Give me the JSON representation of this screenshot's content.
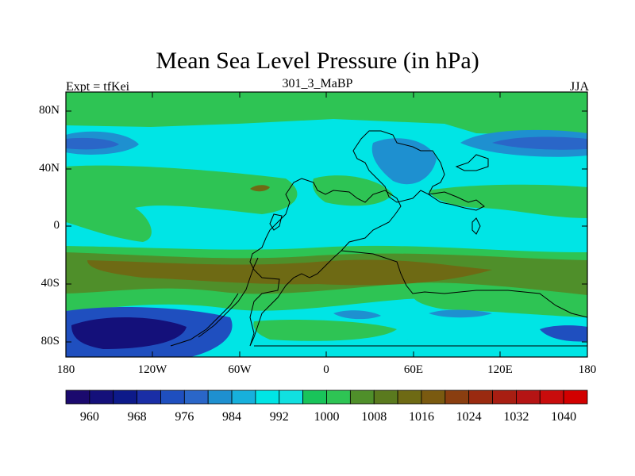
{
  "title": "Mean Sea Level Pressure (in hPa)",
  "left_label": "Expt = tfKei",
  "center_label": "301_3_MaBP",
  "right_label": "JJA",
  "y_ticks": [
    "80N",
    "40N",
    "0",
    "40S",
    "80S"
  ],
  "x_ticks": [
    "180",
    "120W",
    "60W",
    "0",
    "60E",
    "120E",
    "180"
  ],
  "colorbar": {
    "labels": [
      "960",
      "968",
      "976",
      "984",
      "992",
      "1000",
      "1008",
      "1016",
      "1024",
      "1032",
      "1040"
    ],
    "colors": [
      "#1b0a6e",
      "#14107a",
      "#0d1a8a",
      "#1a2ea6",
      "#1f4fbf",
      "#2a66c8",
      "#1e90d0",
      "#17b0dc",
      "#00e5e5",
      "#11e0e0",
      "#19c45a",
      "#2ec454",
      "#4f8f2a",
      "#5a7a1e",
      "#6e6a14",
      "#7a5a10",
      "#8a3e10",
      "#9a2a10",
      "#a81e12",
      "#b51414",
      "#c80c0c",
      "#d20000"
    ]
  }
}
